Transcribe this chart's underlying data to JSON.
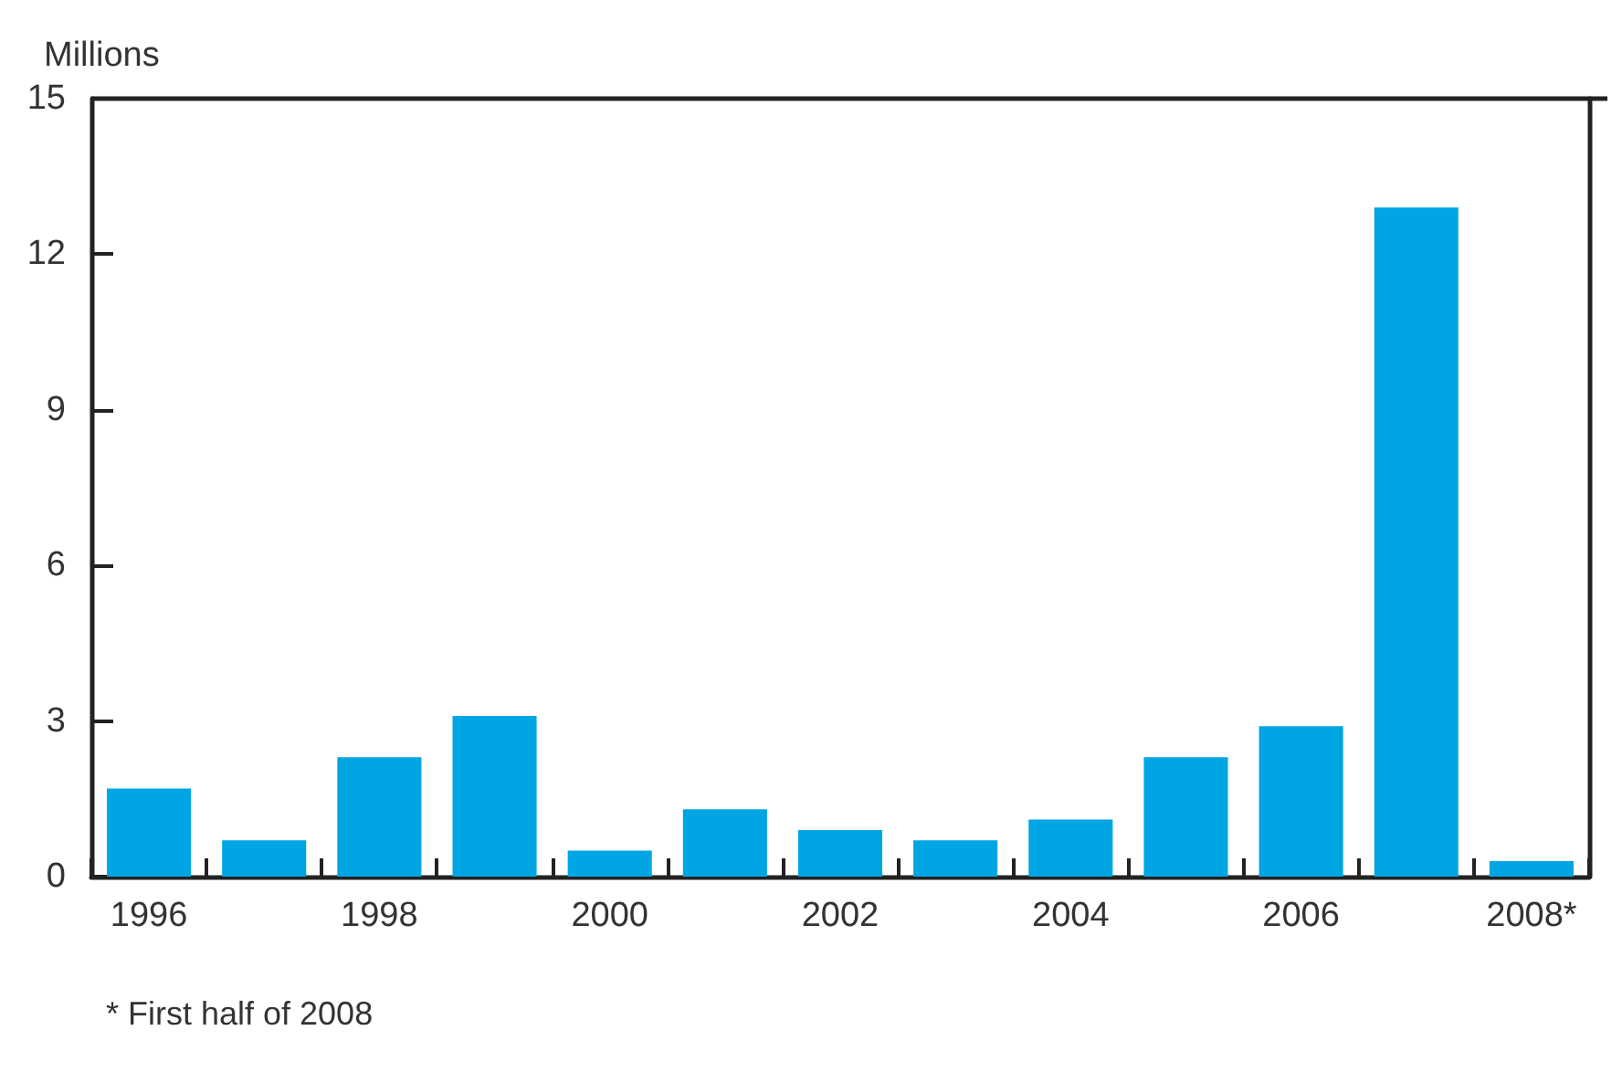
{
  "chart_data": {
    "type": "bar",
    "ylabel": "Millions",
    "categories": [
      "1996",
      null,
      "1998",
      null,
      "2000",
      null,
      "2002",
      null,
      "2004",
      null,
      "2006",
      null,
      "2008*"
    ],
    "values": [
      1.7,
      0.7,
      2.3,
      3.1,
      0.5,
      1.3,
      0.9,
      0.7,
      1.1,
      2.3,
      2.9,
      12.9,
      0.3
    ],
    "color": "#00a5e3",
    "ylim": [
      0,
      15
    ],
    "yticks": [
      0,
      3,
      6,
      9,
      12,
      15
    ],
    "grid": false,
    "annotations": [
      "* First half of 2008"
    ]
  }
}
